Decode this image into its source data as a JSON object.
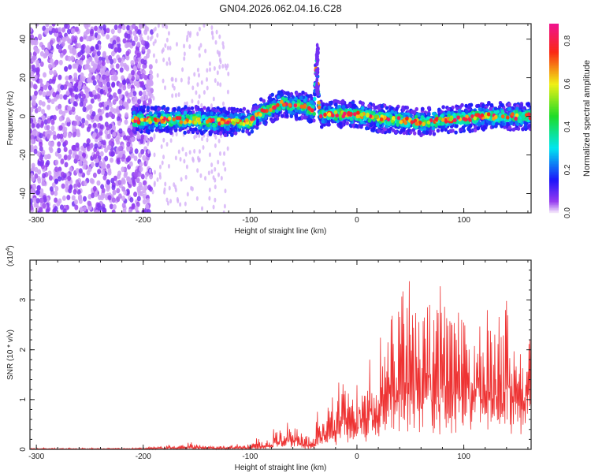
{
  "chart_data": [
    {
      "type": "heatmap",
      "title": "GN04.2026.062.04.16.C28",
      "xlabel": "Height of straight line (km)",
      "ylabel": "Frequency (Hz)",
      "xlim": [
        -306,
        163
      ],
      "ylim": [
        -50,
        48
      ],
      "xticks": [
        -300,
        -200,
        -100,
        0,
        100
      ],
      "yticks": [
        -40,
        -20,
        0,
        20,
        40
      ],
      "colorbar": {
        "label": "Normalized spectral amplitude",
        "range": [
          0,
          0.88
        ],
        "ticks": [
          "0.0",
          "0.2",
          "0.4",
          "0.6",
          "0.8"
        ],
        "colormap": "rainbow (white-purple-blue-cyan-green-yellow-red-magenta)"
      },
      "ridge": {
        "x": [
          -210,
          -180,
          -150,
          -120,
          -100,
          -90,
          -80,
          -70,
          -60,
          -50,
          -40,
          -38,
          -35,
          -20,
          0,
          20,
          40,
          60,
          80,
          100,
          120,
          140,
          163
        ],
        "y": [
          -2,
          -2,
          -2,
          -3,
          -3,
          2,
          4,
          7,
          5,
          6,
          3,
          30,
          1,
          1,
          1,
          -1,
          -2,
          -3,
          -2,
          -1,
          0,
          0,
          0
        ]
      },
      "noise_region_x": [
        -306,
        -200
      ]
    },
    {
      "type": "line",
      "title": "",
      "xlabel": "Height of straight line (km)",
      "ylabel": "SNR (10 * v/v)",
      "yscale_label": "(x10",
      "yscale_exp": "4",
      "xlim": [
        -306,
        163
      ],
      "ylim": [
        0,
        3.8
      ],
      "xticks": [
        -300,
        -200,
        -100,
        0,
        100
      ],
      "yticks": [
        0,
        1,
        2,
        3
      ],
      "color": "#ee3333",
      "x_start": -306,
      "x_step": 4,
      "values": [
        0.02,
        0.03,
        0.02,
        0.03,
        0.02,
        0.03,
        0.02,
        0.03,
        0.02,
        0.03,
        0.02,
        0.02,
        0.03,
        0.02,
        0.03,
        0.02,
        0.03,
        0.02,
        0.03,
        0.02,
        0.03,
        0.02,
        0.03,
        0.02,
        0.03,
        0.03,
        0.04,
        0.04,
        0.05,
        0.06,
        0.08,
        0.06,
        0.1,
        0.08,
        0.07,
        0.09,
        0.1,
        0.14,
        0.09,
        0.12,
        0.08,
        0.07,
        0.08,
        0.06,
        0.07,
        0.08,
        0.06,
        0.09,
        0.12,
        0.1,
        0.08,
        0.1,
        0.15,
        0.25,
        0.18,
        0.2,
        0.18,
        0.55,
        0.5,
        0.48,
        0.55,
        0.4,
        0.45,
        0.35,
        0.3,
        0.25,
        0.22,
        0.8,
        0.75,
        0.9,
        1.05,
        0.85,
        1.45,
        1.7,
        1.2,
        1.0,
        1.4,
        1.9,
        1.2,
        2.3,
        1.5,
        1.6,
        3.6,
        3.1,
        2.9,
        3.1,
        2.8,
        3.5,
        3.4,
        3.3,
        3.0,
        2.7,
        3.2,
        3.7,
        3.0,
        2.8,
        3.4,
        3.1,
        2.9,
        3.3,
        3.0,
        2.7,
        3.2,
        2.5,
        3.1,
        2.9,
        2.6,
        3.0,
        3.2,
        2.7,
        2.4,
        3.4,
        3.1,
        2.6,
        2.8,
        2.2,
        2.9,
        2.8
      ]
    }
  ]
}
